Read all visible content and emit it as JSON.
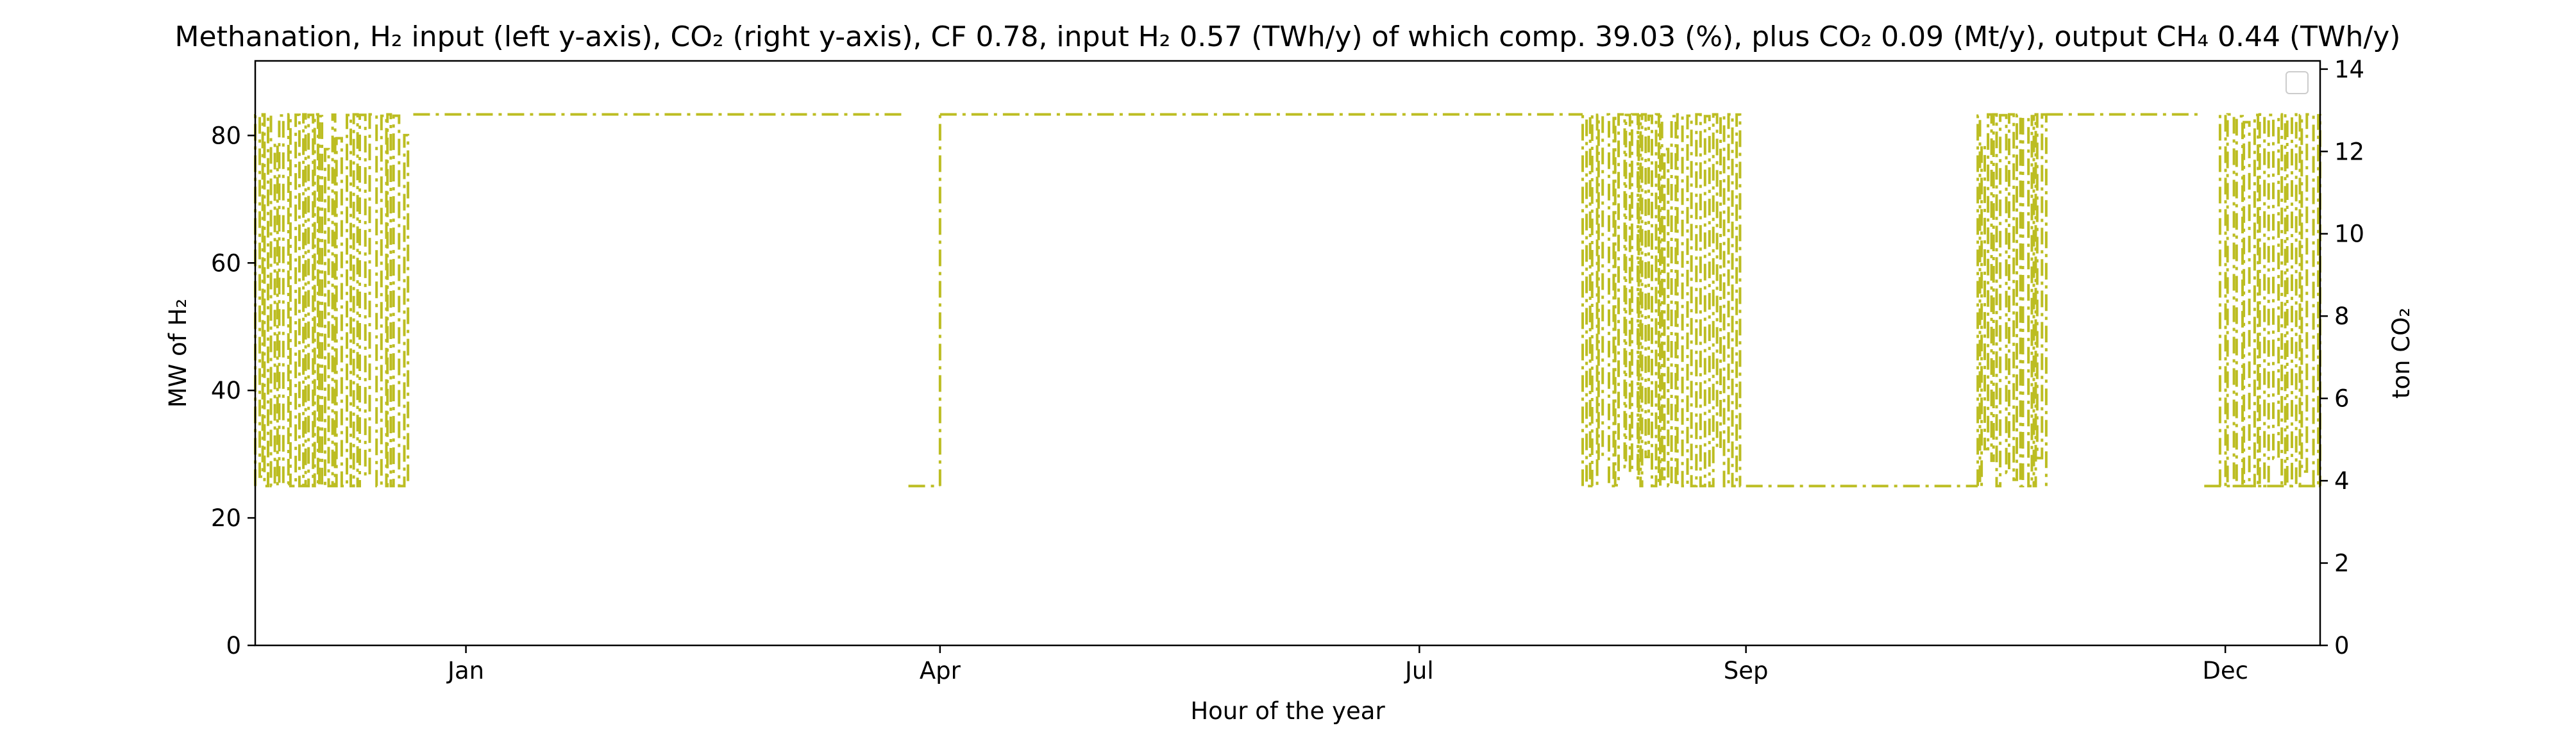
{
  "chart_data": {
    "type": "line",
    "title": "Methanation, H₂ input (left y-axis), CO₂ (right y-axis), CF 0.78, input H₂ 0.57 (TWh/y) of which comp. 39.03 (%), plus CO₂ 0.09 (Mt/y), output CH₄ 0.44 (TWh/y)",
    "xlabel": "Hour of the year",
    "ylabel_left": "MW of H₂",
    "ylabel_right": "ton CO₂",
    "x_ticks": [
      "Jan",
      "Apr",
      "Jul",
      "Sep",
      "Dec"
    ],
    "x_tick_dates": [
      "2023-01-01",
      "2023-04-01",
      "2023-07-01",
      "2023-09-01",
      "2023-12-01"
    ],
    "xlim": [
      "2022-11-22",
      "2023-12-19"
    ],
    "ylim_left": [
      0,
      91.7
    ],
    "yticks_left": [
      0,
      20,
      40,
      60,
      80
    ],
    "ylim_right": [
      0,
      14.2
    ],
    "yticks_right": [
      0,
      2,
      4,
      6,
      8,
      10,
      12,
      14
    ],
    "legend": {
      "placement": "top-right",
      "entries": []
    },
    "grid": false,
    "series": [
      {
        "color": "#bcbd22",
        "linestyle": "dash-dot",
        "y_levels": {
          "low": 25,
          "high": 83.3
        },
        "steady_segments": [
          {
            "start": "2022-12-22",
            "end": "2023-03-25",
            "value": 83.3
          },
          {
            "start": "2023-03-26",
            "end": "2023-04-01",
            "value": 25
          },
          {
            "start": "2023-04-01",
            "end": "2023-08-01",
            "value": 83.3
          },
          {
            "start": "2023-09-01",
            "end": "2023-10-15",
            "value": 25
          },
          {
            "start": "2023-10-28",
            "end": "2023-11-26",
            "value": 83.3
          },
          {
            "start": "2023-11-27",
            "end": "2023-12-19",
            "value": 25
          }
        ],
        "oscillating_segments": [
          {
            "start": "2022-11-22",
            "end": "2022-12-21"
          },
          {
            "start": "2023-08-01",
            "end": "2023-08-31"
          },
          {
            "start": "2023-10-15",
            "end": "2023-10-28"
          },
          {
            "start": "2023-11-30",
            "end": "2023-12-19"
          }
        ]
      }
    ]
  }
}
